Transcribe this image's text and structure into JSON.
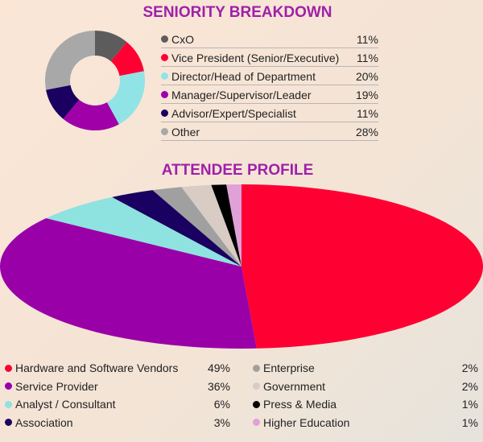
{
  "chart_data": [
    {
      "type": "pie",
      "subtype": "donut",
      "title": "SENIORITY BREAKDOWN",
      "categories": [
        "CxO",
        "Vice President (Senior/Executive)",
        "Director/Head of Department",
        "Manager/Supervisor/Leader",
        "Advisor/Expert/Specialist",
        "Other"
      ],
      "values": [
        11,
        11,
        20,
        19,
        11,
        28
      ],
      "labels": [
        "11%",
        "11%",
        "20%",
        "19%",
        "11%",
        "28%"
      ],
      "colors": [
        "#5c5c5c",
        "#ff0033",
        "#90e4e6",
        "#a000a8",
        "#1a0060",
        "#a8a8a8"
      ],
      "legend": "right"
    },
    {
      "type": "pie",
      "title": "ATTENDEE PROFILE",
      "categories": [
        "Hardware and Software Vendors",
        "Service Provider",
        "Analyst / Consultant",
        "Association",
        "Enterprise",
        "Government",
        "Press & Media",
        "Higher Education"
      ],
      "values": [
        49,
        36,
        6,
        3,
        2,
        2,
        1,
        1
      ],
      "labels": [
        "49%",
        "36%",
        "6%",
        "3%",
        "2%",
        "2%",
        "1%",
        "1%"
      ],
      "colors": [
        "#ff0033",
        "#9a00a8",
        "#8ee2e0",
        "#1a0060",
        "#a0a0a0",
        "#d8ccc4",
        "#000000",
        "#e0a0d8"
      ],
      "legend": "bottom"
    }
  ]
}
